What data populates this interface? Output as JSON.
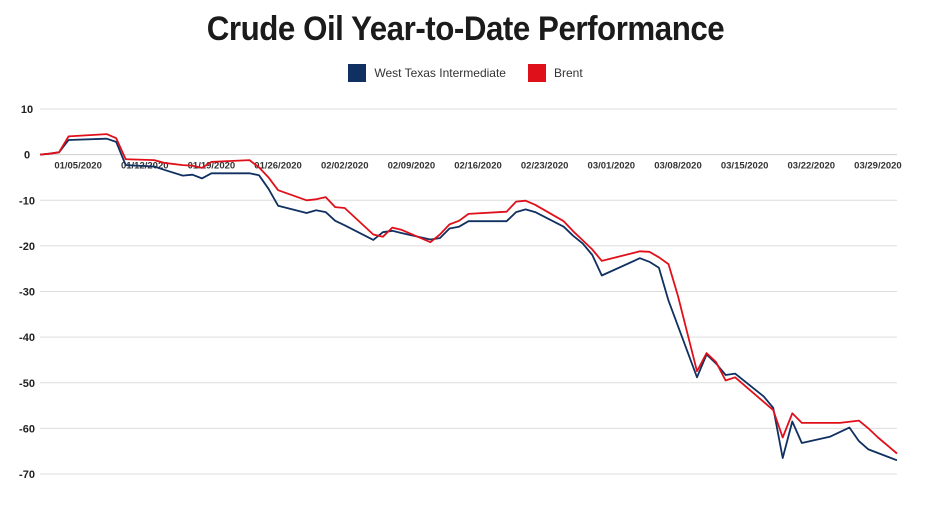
{
  "chart_data": {
    "type": "line",
    "title": "Crude Oil Year-to-Date Performance",
    "xlabel": "",
    "ylabel": "",
    "ylim": [
      -70,
      10
    ],
    "yticks": [
      10,
      0,
      -10,
      -20,
      -30,
      -40,
      -50,
      -60,
      -70
    ],
    "xticks": [
      "01/05/2020",
      "01/12/2020",
      "01/19/2020",
      "01/26/2020",
      "02/02/2020",
      "02/09/2020",
      "02/16/2020",
      "02/23/2020",
      "03/01/2020",
      "03/08/2020",
      "03/15/2020",
      "03/22/2020",
      "03/29/2020"
    ],
    "grid": true,
    "legend_position": "top-center",
    "x_start": "2020-01-01",
    "x_end": "2020-03-31",
    "series": [
      {
        "name": "West Texas Intermediate",
        "color": "#0f3060",
        "points": [
          [
            "2020-01-01",
            0.0
          ],
          [
            "2020-01-02",
            0.2
          ],
          [
            "2020-01-03",
            0.5
          ],
          [
            "2020-01-04",
            3.2
          ],
          [
            "2020-01-08",
            3.5
          ],
          [
            "2020-01-09",
            2.8
          ],
          [
            "2020-01-10",
            -2.3
          ],
          [
            "2020-01-13",
            -2.6
          ],
          [
            "2020-01-14",
            -3.3
          ],
          [
            "2020-01-16",
            -4.6
          ],
          [
            "2020-01-17",
            -4.4
          ],
          [
            "2020-01-18",
            -5.2
          ],
          [
            "2020-01-19",
            -4.1
          ],
          [
            "2020-01-23",
            -4.1
          ],
          [
            "2020-01-24",
            -4.5
          ],
          [
            "2020-01-25",
            -7.5
          ],
          [
            "2020-01-26",
            -11.2
          ],
          [
            "2020-01-29",
            -12.8
          ],
          [
            "2020-01-30",
            -12.2
          ],
          [
            "2020-01-31",
            -12.6
          ],
          [
            "2020-02-01",
            -14.5
          ],
          [
            "2020-02-02",
            -15.5
          ],
          [
            "2020-02-05",
            -18.7
          ],
          [
            "2020-02-06",
            -17.0
          ],
          [
            "2020-02-07",
            -16.7
          ],
          [
            "2020-02-08",
            -17.2
          ],
          [
            "2020-02-11",
            -18.6
          ],
          [
            "2020-02-12",
            -18.3
          ],
          [
            "2020-02-13",
            -16.2
          ],
          [
            "2020-02-14",
            -15.8
          ],
          [
            "2020-02-15",
            -14.6
          ],
          [
            "2020-02-19",
            -14.6
          ],
          [
            "2020-02-20",
            -12.6
          ],
          [
            "2020-02-21",
            -12.0
          ],
          [
            "2020-02-22",
            -12.6
          ],
          [
            "2020-02-25",
            -15.8
          ],
          [
            "2020-02-26",
            -17.8
          ],
          [
            "2020-02-27",
            -19.5
          ],
          [
            "2020-02-28",
            -22.0
          ],
          [
            "2020-02-29",
            -26.5
          ],
          [
            "2020-03-04",
            -22.7
          ],
          [
            "2020-03-05",
            -23.5
          ],
          [
            "2020-03-06",
            -24.8
          ],
          [
            "2020-03-07",
            -32.0
          ],
          [
            "2020-03-10",
            -48.8
          ],
          [
            "2020-03-11",
            -43.8
          ],
          [
            "2020-03-12",
            -45.8
          ],
          [
            "2020-03-13",
            -48.3
          ],
          [
            "2020-03-14",
            -48.0
          ],
          [
            "2020-03-17",
            -53.0
          ],
          [
            "2020-03-18",
            -55.5
          ],
          [
            "2020-03-19",
            -66.5
          ],
          [
            "2020-03-20",
            -58.5
          ],
          [
            "2020-03-21",
            -63.2
          ],
          [
            "2020-03-24",
            -61.8
          ],
          [
            "2020-03-26",
            -59.8
          ],
          [
            "2020-03-27",
            -62.8
          ],
          [
            "2020-03-28",
            -64.6
          ],
          [
            "2020-03-31",
            -67.0
          ]
        ]
      },
      {
        "name": "Brent",
        "color": "#e0101a",
        "points": [
          [
            "2020-01-01",
            0.0
          ],
          [
            "2020-01-02",
            0.2
          ],
          [
            "2020-01-03",
            0.5
          ],
          [
            "2020-01-04",
            4.0
          ],
          [
            "2020-01-08",
            4.5
          ],
          [
            "2020-01-09",
            3.6
          ],
          [
            "2020-01-10",
            -1.0
          ],
          [
            "2020-01-13",
            -1.2
          ],
          [
            "2020-01-14",
            -1.8
          ],
          [
            "2020-01-16",
            -2.3
          ],
          [
            "2020-01-17",
            -2.4
          ],
          [
            "2020-01-18",
            -2.9
          ],
          [
            "2020-01-19",
            -1.6
          ],
          [
            "2020-01-23",
            -1.2
          ],
          [
            "2020-01-24",
            -2.8
          ],
          [
            "2020-01-25",
            -5.0
          ],
          [
            "2020-01-26",
            -7.8
          ],
          [
            "2020-01-29",
            -10.0
          ],
          [
            "2020-01-30",
            -9.8
          ],
          [
            "2020-01-31",
            -9.3
          ],
          [
            "2020-02-01",
            -11.5
          ],
          [
            "2020-02-02",
            -11.7
          ],
          [
            "2020-02-05",
            -17.5
          ],
          [
            "2020-02-06",
            -18.0
          ],
          [
            "2020-02-07",
            -16.0
          ],
          [
            "2020-02-08",
            -16.5
          ],
          [
            "2020-02-11",
            -19.2
          ],
          [
            "2020-02-12",
            -17.5
          ],
          [
            "2020-02-13",
            -15.3
          ],
          [
            "2020-02-14",
            -14.5
          ],
          [
            "2020-02-15",
            -13.0
          ],
          [
            "2020-02-19",
            -12.5
          ],
          [
            "2020-02-20",
            -10.3
          ],
          [
            "2020-02-21",
            -10.1
          ],
          [
            "2020-02-22",
            -11.0
          ],
          [
            "2020-02-25",
            -14.6
          ],
          [
            "2020-02-26",
            -16.8
          ],
          [
            "2020-02-27",
            -18.8
          ],
          [
            "2020-02-28",
            -20.8
          ],
          [
            "2020-02-29",
            -23.3
          ],
          [
            "2020-03-04",
            -21.2
          ],
          [
            "2020-03-05",
            -21.3
          ],
          [
            "2020-03-06",
            -22.5
          ],
          [
            "2020-03-07",
            -24.0
          ],
          [
            "2020-03-08",
            -31.0
          ],
          [
            "2020-03-10",
            -47.5
          ],
          [
            "2020-03-11",
            -43.5
          ],
          [
            "2020-03-12",
            -45.5
          ],
          [
            "2020-03-13",
            -49.5
          ],
          [
            "2020-03-14",
            -48.8
          ],
          [
            "2020-03-18",
            -56.0
          ],
          [
            "2020-03-19",
            -62.0
          ],
          [
            "2020-03-20",
            -56.7
          ],
          [
            "2020-03-21",
            -58.8
          ],
          [
            "2020-03-25",
            -58.8
          ],
          [
            "2020-03-27",
            -58.3
          ],
          [
            "2020-03-28",
            -60.0
          ],
          [
            "2020-03-29",
            -62.0
          ],
          [
            "2020-03-31",
            -65.5
          ]
        ]
      }
    ]
  }
}
